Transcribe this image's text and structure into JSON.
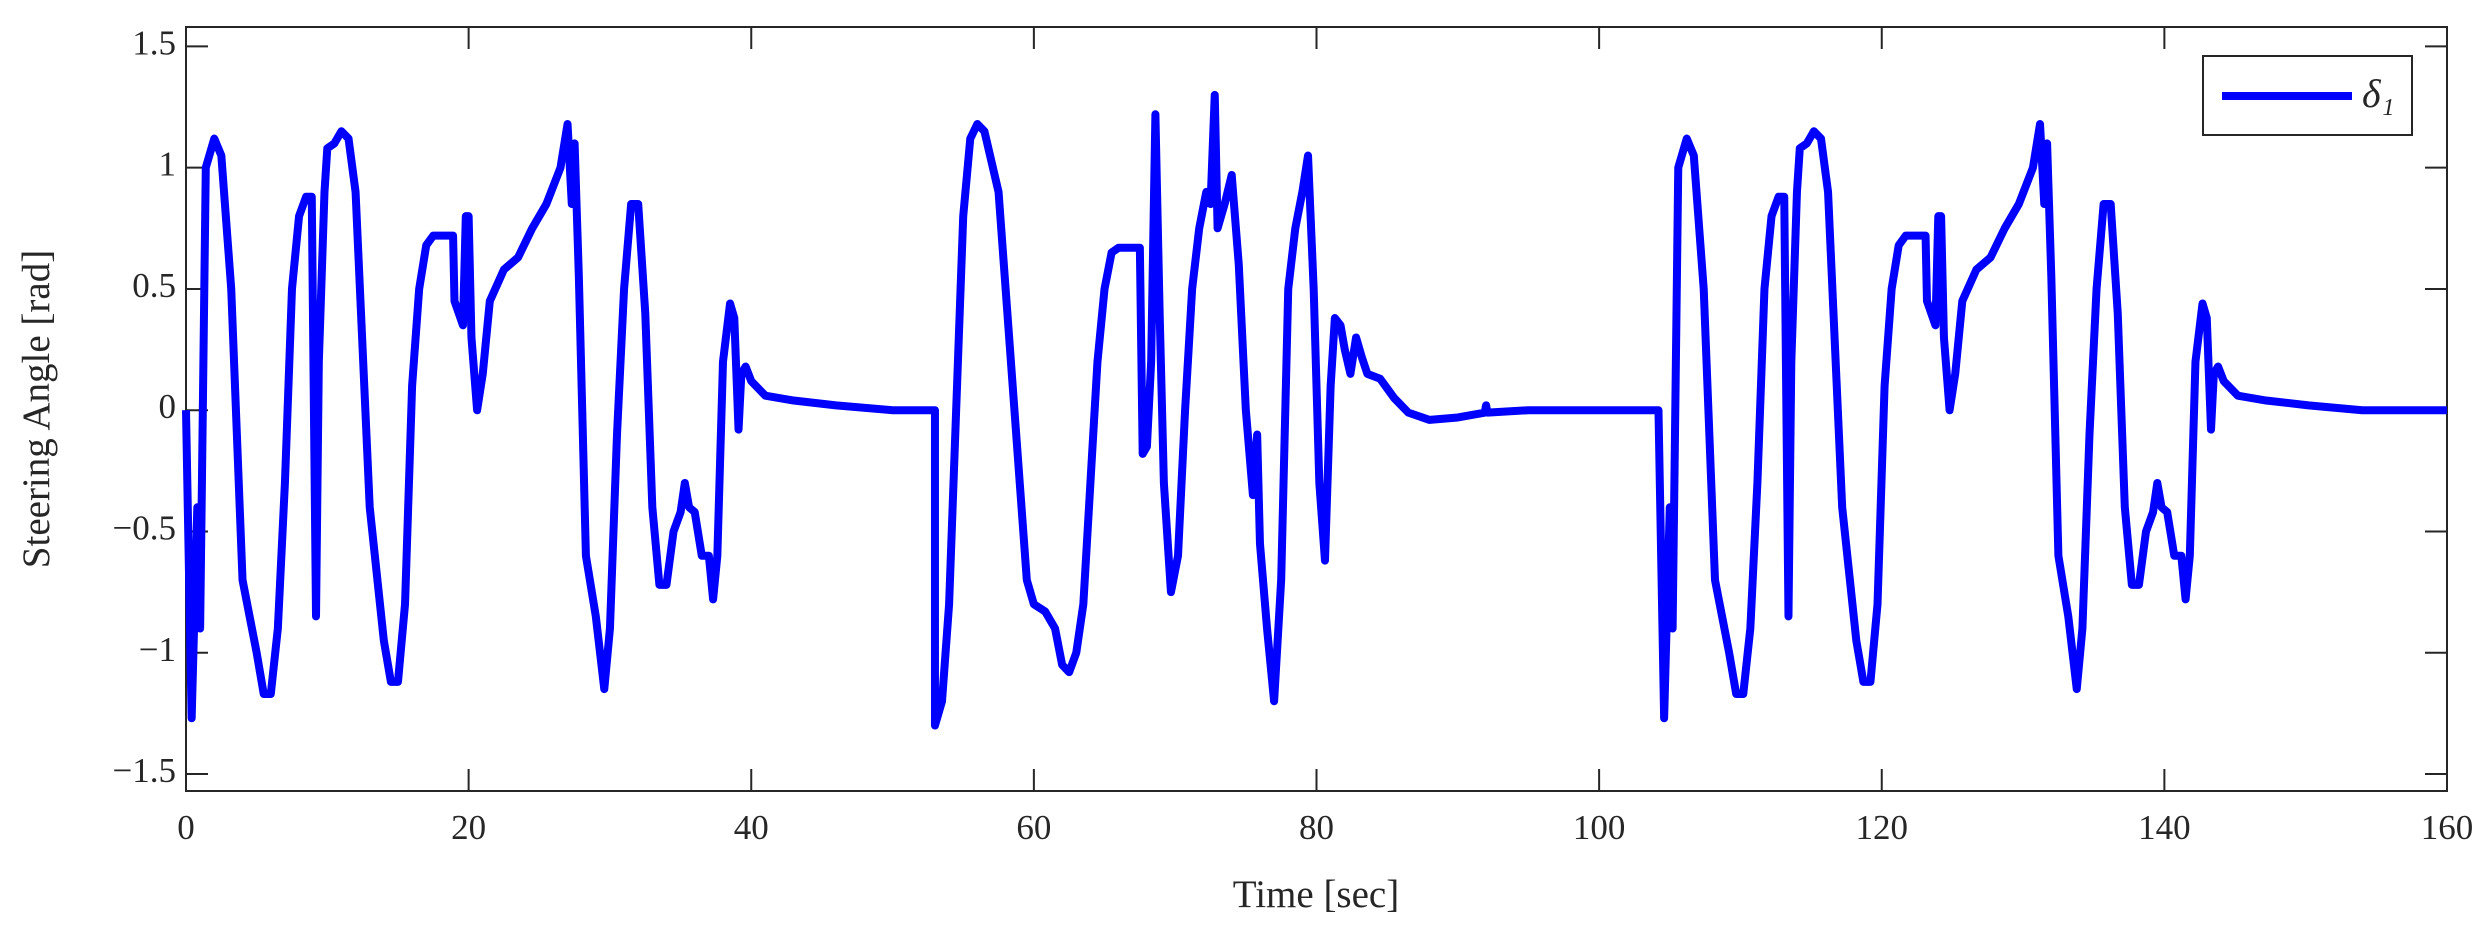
{
  "chart_data": {
    "type": "line",
    "xlabel": "Time [sec]",
    "ylabel": "Steering Angle [rad]",
    "xlim": [
      0,
      160
    ],
    "xticks": [
      0,
      20,
      40,
      60,
      80,
      100,
      120,
      140,
      160
    ],
    "ylim": [
      -1.57,
      1.58
    ],
    "yticks": [
      {
        "value": -1.5,
        "label": "−1.5"
      },
      {
        "value": -1,
        "label": "−1"
      },
      {
        "value": -0.5,
        "label": "−0.5"
      },
      0,
      0.5,
      1,
      1.5
    ],
    "legend": "upper right",
    "series": [
      {
        "name": "δ₁",
        "color": "#0000ff",
        "x": [
          0,
          0.4,
          0.8,
          1.0,
          1.4,
          2.0,
          2.5,
          3.2,
          4.0,
          5.0,
          5.5,
          6.0,
          6.5,
          7.0,
          7.5,
          8.0,
          8.5,
          8.9,
          9.2,
          9.4,
          9.8,
          10.0,
          10.5,
          11.0,
          11.5,
          12.0,
          13.0,
          14.0,
          14.5,
          15.0,
          15.5,
          16.0,
          16.5,
          17.0,
          17.5,
          18.9,
          19.0,
          19.3,
          19.6,
          19.8,
          20.0,
          20.2,
          20.6,
          21.0,
          21.5,
          22.5,
          23.5,
          24.5,
          25.5,
          26.5,
          27.0,
          27.3,
          27.5,
          27.8,
          28.3,
          29.0,
          29.6,
          30.0,
          30.5,
          31.0,
          31.5,
          32.0,
          32.5,
          33.0,
          33.5,
          34.0,
          34.5,
          35.0,
          35.3,
          35.6,
          36.0,
          36.5,
          37.0,
          37.3,
          37.6,
          38.0,
          38.5,
          38.8,
          39.1,
          39.3,
          39.6,
          40.0,
          41.0,
          43.0,
          46.0,
          50.0,
          53.0,
          53.0,
          53.5,
          54.0,
          54.5,
          55.0,
          55.5,
          56.0,
          56.5,
          57.5,
          58.5,
          59.5,
          60.0,
          60.8,
          61.5,
          62.0,
          62.5,
          63.0,
          63.5,
          64.0,
          64.5,
          65.0,
          65.5,
          66.0,
          67.5,
          67.7,
          68.0,
          68.3,
          68.6,
          68.9,
          69.2,
          69.7,
          70.2,
          70.7,
          71.2,
          71.7,
          72.2,
          72.5,
          72.8,
          73.0,
          73.5,
          74.0,
          74.5,
          75.0,
          75.5,
          75.8,
          76.0,
          76.5,
          77.0,
          77.5,
          78.0,
          78.5,
          79.0,
          79.4,
          79.8,
          80.2,
          80.6,
          81.0,
          81.3,
          81.7,
          82.0,
          82.4,
          82.8,
          83.2,
          83.6,
          84.5,
          85.5,
          86.5,
          88.0,
          90.0,
          91.9,
          92.0,
          92.1,
          95.0,
          104.0,
          104.2,
          104.6,
          105,
          105.2,
          105.6,
          106.2,
          106.7,
          107.4,
          108.2,
          109.2,
          109.7,
          110.2,
          110.7,
          111.2,
          111.7,
          112.2,
          112.7,
          113.1,
          113.4,
          113.6,
          114,
          114.2,
          114.7,
          115.2,
          115.7,
          116.2,
          117.2,
          118.2,
          118.7,
          119.2,
          119.7,
          120.2,
          120.7,
          121.2,
          121.7,
          123.1,
          123.2,
          123.5,
          123.8,
          124,
          124.2,
          124.4,
          124.8,
          125.2,
          125.7,
          126.7,
          127.7,
          128.7,
          129.7,
          130.7,
          131.2,
          131.5,
          131.7,
          132,
          132.5,
          133.2,
          133.8,
          134.2,
          134.7,
          135.2,
          135.7,
          136.2,
          136.7,
          137.2,
          137.7,
          138.2,
          138.7,
          139.2,
          139.5,
          139.8,
          140.2,
          140.7,
          141.2,
          141.5,
          141.8,
          142.2,
          142.7,
          143,
          143.3,
          143.5,
          143.8,
          144.2,
          145.2,
          147.2,
          150.2,
          154,
          160
        ],
        "values": [
          0,
          -1.27,
          -0.4,
          -0.9,
          1.0,
          1.12,
          1.05,
          0.5,
          -0.7,
          -1.0,
          -1.17,
          -1.17,
          -0.9,
          -0.3,
          0.5,
          0.8,
          0.88,
          0.88,
          -0.85,
          0.2,
          0.9,
          1.08,
          1.1,
          1.15,
          1.12,
          0.9,
          -0.4,
          -0.95,
          -1.12,
          -1.12,
          -0.8,
          0.1,
          0.5,
          0.68,
          0.72,
          0.72,
          0.45,
          0.4,
          0.35,
          0.8,
          0.8,
          0.3,
          0.0,
          0.15,
          0.45,
          0.58,
          0.63,
          0.75,
          0.85,
          1.0,
          1.18,
          0.85,
          1.1,
          0.55,
          -0.6,
          -0.85,
          -1.15,
          -0.9,
          -0.1,
          0.5,
          0.85,
          0.85,
          0.4,
          -0.4,
          -0.72,
          -0.72,
          -0.5,
          -0.42,
          -0.3,
          -0.4,
          -0.42,
          -0.6,
          -0.6,
          -0.78,
          -0.6,
          0.2,
          0.44,
          0.38,
          -0.08,
          0.15,
          0.18,
          0.12,
          0.06,
          0.04,
          0.02,
          0.0,
          0.0,
          -1.3,
          -1.2,
          -0.8,
          0.0,
          0.8,
          1.12,
          1.18,
          1.15,
          0.9,
          0.1,
          -0.7,
          -0.8,
          -0.83,
          -0.9,
          -1.05,
          -1.08,
          -1.0,
          -0.8,
          -0.3,
          0.2,
          0.5,
          0.65,
          0.67,
          0.67,
          -0.18,
          -0.15,
          0.2,
          1.22,
          0.4,
          -0.3,
          -0.75,
          -0.6,
          0.0,
          0.5,
          0.75,
          0.9,
          0.85,
          1.3,
          0.75,
          0.85,
          0.97,
          0.6,
          0.0,
          -0.35,
          -0.1,
          -0.55,
          -0.9,
          -1.2,
          -0.7,
          0.5,
          0.75,
          0.9,
          1.05,
          0.5,
          -0.3,
          -0.62,
          0.1,
          0.38,
          0.35,
          0.25,
          0.15,
          0.3,
          0.22,
          0.15,
          0.13,
          0.05,
          -0.01,
          -0.04,
          -0.03,
          -0.01,
          0.02,
          -0.01,
          0.0,
          0.0,
          0,
          -1.27,
          -0.4,
          -0.9,
          1.0,
          1.12,
          1.05,
          0.5,
          -0.7,
          -1.0,
          -1.17,
          -1.17,
          -0.9,
          -0.3,
          0.5,
          0.8,
          0.88,
          0.88,
          -0.85,
          0.2,
          0.9,
          1.08,
          1.1,
          1.15,
          1.12,
          0.9,
          -0.4,
          -0.95,
          -1.12,
          -1.12,
          -0.8,
          0.1,
          0.5,
          0.68,
          0.72,
          0.72,
          0.45,
          0.4,
          0.35,
          0.8,
          0.8,
          0.3,
          0,
          0.15,
          0.45,
          0.58,
          0.63,
          0.75,
          0.85,
          1.0,
          1.18,
          0.85,
          1.1,
          0.55,
          -0.6,
          -0.85,
          -1.15,
          -0.9,
          -0.1,
          0.5,
          0.85,
          0.85,
          0.4,
          -0.4,
          -0.72,
          -0.72,
          -0.5,
          -0.42,
          -0.3,
          -0.4,
          -0.42,
          -0.6,
          -0.6,
          -0.78,
          -0.6,
          0.2,
          0.44,
          0.38,
          -0.08,
          0.15,
          0.18,
          0.12,
          0.06,
          0.04,
          0.02,
          0,
          0
        ]
      }
    ]
  }
}
